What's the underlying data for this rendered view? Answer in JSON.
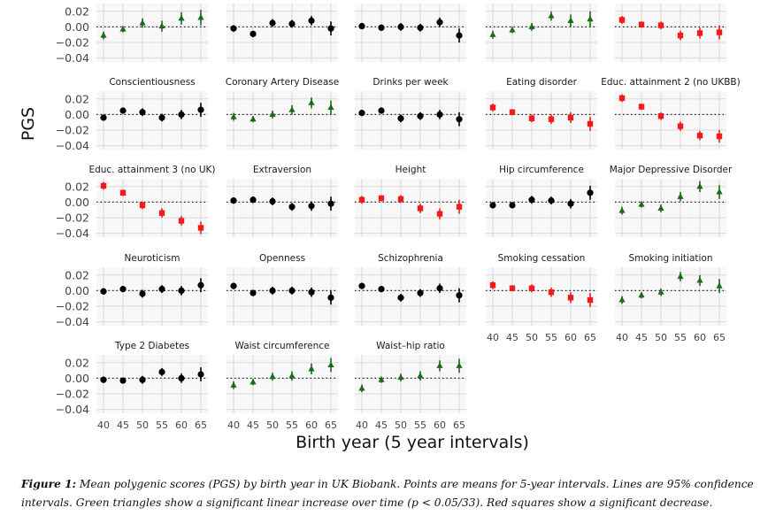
{
  "chart_data": {
    "type": "scatter",
    "title": "",
    "xlabel": "Birth year (5 year intervals)",
    "ylabel": "PGS",
    "x": [
      40,
      45,
      50,
      55,
      60,
      65
    ],
    "x_tick_labels": [
      "40",
      "45",
      "50",
      "55",
      "60",
      "65"
    ],
    "y_ticks": [
      "0.02",
      "0.00",
      "−0.02",
      "−0.04"
    ],
    "y_tick_values": [
      0.02,
      0.0,
      -0.02,
      -0.04
    ],
    "ylim": [
      -0.045,
      0.03
    ],
    "reference_line": 0,
    "grid": true,
    "colors": {
      "increase": "#1a6b1a",
      "decrease": "#ee1c1c",
      "neutral": "#000000"
    },
    "panels": [
      {
        "label": "",
        "trend": "increase",
        "values": [
          -0.011,
          -0.003,
          0.005,
          0.001,
          0.011,
          0.012
        ],
        "ci": [
          0.005,
          0.004,
          0.006,
          0.007,
          0.008,
          0.01
        ]
      },
      {
        "label": "",
        "trend": "neutral",
        "values": [
          -0.002,
          -0.009,
          0.005,
          0.004,
          0.008,
          -0.002
        ],
        "ci": [
          0.004,
          0.004,
          0.005,
          0.005,
          0.006,
          0.009
        ]
      },
      {
        "label": "",
        "trend": "neutral",
        "values": [
          0.001,
          -0.001,
          0.0,
          -0.001,
          0.006,
          -0.011
        ],
        "ci": [
          0.004,
          0.004,
          0.005,
          0.005,
          0.006,
          0.009
        ]
      },
      {
        "label": "",
        "trend": "increase",
        "values": [
          -0.01,
          -0.004,
          0.0,
          0.014,
          0.008,
          0.01
        ],
        "ci": [
          0.005,
          0.004,
          0.005,
          0.006,
          0.008,
          0.01
        ]
      },
      {
        "label": "",
        "trend": "decrease",
        "values": [
          0.009,
          0.003,
          0.002,
          -0.011,
          -0.008,
          -0.007
        ],
        "ci": [
          0.005,
          0.004,
          0.005,
          0.006,
          0.007,
          0.009
        ]
      },
      {
        "label": "Conscientiousness",
        "trend": "neutral",
        "values": [
          -0.004,
          0.005,
          0.003,
          -0.004,
          0.0,
          0.006
        ],
        "ci": [
          0.004,
          0.004,
          0.005,
          0.005,
          0.006,
          0.009
        ]
      },
      {
        "label": "Coronary Artery Disease",
        "trend": "increase",
        "values": [
          -0.003,
          -0.006,
          0.0,
          0.006,
          0.015,
          0.009
        ],
        "ci": [
          0.005,
          0.004,
          0.005,
          0.006,
          0.007,
          0.009
        ]
      },
      {
        "label": "Drinks per week",
        "trend": "neutral",
        "values": [
          0.002,
          0.005,
          -0.005,
          -0.002,
          0.0,
          -0.006
        ],
        "ci": [
          0.004,
          0.004,
          0.005,
          0.005,
          0.006,
          0.009
        ]
      },
      {
        "label": "Eating disorder",
        "trend": "decrease",
        "values": [
          0.009,
          0.003,
          -0.005,
          -0.006,
          -0.004,
          -0.012
        ],
        "ci": [
          0.005,
          0.004,
          0.005,
          0.006,
          0.007,
          0.009
        ]
      },
      {
        "label": "Educ. attainment 2 (no UKBB)",
        "trend": "decrease",
        "values": [
          0.021,
          0.01,
          -0.002,
          -0.015,
          -0.027,
          -0.028
        ],
        "ci": [
          0.005,
          0.004,
          0.005,
          0.006,
          0.006,
          0.008
        ]
      },
      {
        "label": "Educ. attainment 3 (no UK)",
        "trend": "decrease",
        "values": [
          0.021,
          0.012,
          -0.004,
          -0.014,
          -0.024,
          -0.033
        ],
        "ci": [
          0.005,
          0.004,
          0.005,
          0.006,
          0.006,
          0.008
        ]
      },
      {
        "label": "Extraversion",
        "trend": "neutral",
        "values": [
          0.002,
          0.003,
          0.001,
          -0.006,
          -0.005,
          -0.002
        ],
        "ci": [
          0.004,
          0.004,
          0.005,
          0.005,
          0.006,
          0.009
        ]
      },
      {
        "label": "Height",
        "trend": "decrease",
        "values": [
          0.003,
          0.005,
          0.004,
          -0.008,
          -0.015,
          -0.006
        ],
        "ci": [
          0.005,
          0.004,
          0.005,
          0.006,
          0.007,
          0.009
        ]
      },
      {
        "label": "Hip circumference",
        "trend": "neutral",
        "values": [
          -0.004,
          -0.004,
          0.003,
          0.002,
          -0.002,
          0.012
        ],
        "ci": [
          0.004,
          0.004,
          0.005,
          0.005,
          0.006,
          0.009
        ]
      },
      {
        "label": "Major Depressive Disorder",
        "trend": "increase",
        "values": [
          -0.011,
          -0.003,
          -0.008,
          0.007,
          0.02,
          0.013
        ],
        "ci": [
          0.005,
          0.004,
          0.005,
          0.006,
          0.007,
          0.009
        ]
      },
      {
        "label": "Neuroticism",
        "trend": "neutral",
        "values": [
          -0.001,
          0.002,
          -0.004,
          0.002,
          0.0,
          0.007
        ],
        "ci": [
          0.004,
          0.004,
          0.005,
          0.005,
          0.006,
          0.009
        ]
      },
      {
        "label": "Openness",
        "trend": "neutral",
        "values": [
          0.006,
          -0.003,
          0.0,
          0.0,
          -0.002,
          -0.009
        ],
        "ci": [
          0.004,
          0.004,
          0.005,
          0.005,
          0.006,
          0.009
        ]
      },
      {
        "label": "Schizophrenia",
        "trend": "neutral",
        "values": [
          0.006,
          0.002,
          -0.009,
          -0.003,
          0.003,
          -0.006
        ],
        "ci": [
          0.004,
          0.004,
          0.005,
          0.005,
          0.006,
          0.009
        ]
      },
      {
        "label": "Smoking cessation",
        "trend": "decrease",
        "values": [
          0.007,
          0.003,
          0.003,
          -0.002,
          -0.009,
          -0.012
        ],
        "ci": [
          0.005,
          0.004,
          0.005,
          0.006,
          0.007,
          0.009
        ]
      },
      {
        "label": "Smoking initiation",
        "trend": "increase",
        "values": [
          -0.012,
          -0.006,
          -0.002,
          0.018,
          0.013,
          0.006
        ],
        "ci": [
          0.005,
          0.004,
          0.005,
          0.006,
          0.007,
          0.009
        ]
      },
      {
        "label": "Type 2 Diabetes",
        "trend": "neutral",
        "values": [
          -0.002,
          -0.003,
          -0.002,
          0.008,
          0.0,
          0.005
        ],
        "ci": [
          0.004,
          0.004,
          0.005,
          0.005,
          0.006,
          0.009
        ]
      },
      {
        "label": "Waist circumference",
        "trend": "increase",
        "values": [
          -0.009,
          -0.005,
          0.002,
          0.003,
          0.012,
          0.017
        ],
        "ci": [
          0.005,
          0.004,
          0.005,
          0.006,
          0.007,
          0.009
        ]
      },
      {
        "label": "Waist–hip ratio",
        "trend": "increase",
        "values": [
          -0.013,
          -0.002,
          0.001,
          0.003,
          0.016,
          0.016
        ],
        "ci": [
          0.005,
          0.004,
          0.005,
          0.006,
          0.007,
          0.009
        ]
      }
    ]
  },
  "caption": {
    "label": "Figure 1:",
    "text": " Mean polygenic scores (PGS) by birth year in UK Biobank. Points are means for 5-year intervals. Lines are 95% confidence intervals. Green triangles show a significant linear increase over time (p < 0.05/33). Red squares show a significant decrease."
  }
}
